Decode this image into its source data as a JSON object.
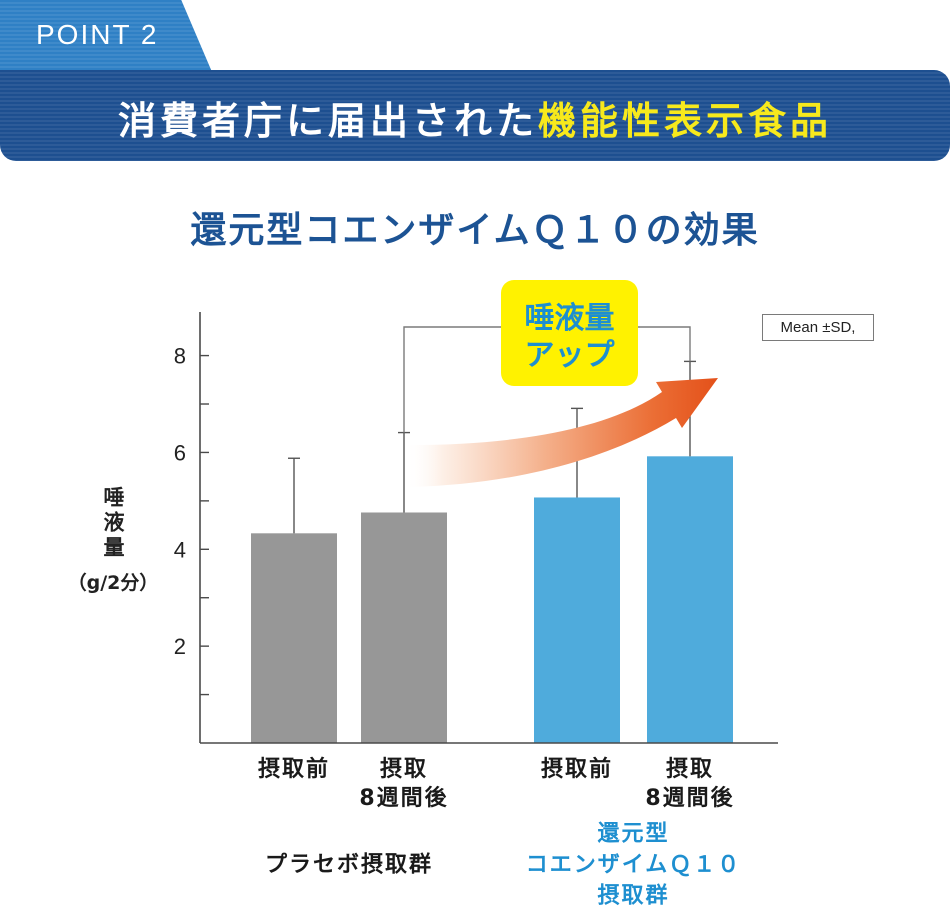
{
  "point_tab": {
    "label": "POINT 2"
  },
  "banner": {
    "text": "消費者庁に届出された",
    "highlight": "機能性表示食品"
  },
  "colors": {
    "tab": "#2f80c5",
    "banner": "#1d4f90",
    "highlight": "#f7e91c",
    "title": "#1c5394",
    "arrow": "#e4521b",
    "callout_bg": "#fff200",
    "callout_text": "#1e8fd0"
  },
  "callout": {
    "line1": "唾液量",
    "line2": "アップ"
  },
  "chart_data": {
    "type": "bar",
    "title": "還元型コエンザイムＱ１０の効果",
    "ylabel": "唾液量",
    "yunit": "（g/2分）",
    "ylim": [
      0,
      8.9
    ],
    "yticks": [
      2,
      4,
      6,
      8
    ],
    "grid": false,
    "note": "Mean ±SD,",
    "groups": [
      {
        "name": "プラセボ摂取群",
        "label_color": "#1a1a1a",
        "bar_color": "#979797",
        "bars": [
          {
            "label": "摂取前",
            "value": 4.33,
            "sd": 1.55
          },
          {
            "label": "摂取\n8週間後",
            "value": 4.76,
            "sd": 1.65
          }
        ]
      },
      {
        "name": "還元型\nコエンザイムＱ１０\n摂取群",
        "label_color": "#1e8fd0",
        "bar_color": "#4fabdc",
        "bars": [
          {
            "label": "摂取前",
            "value": 5.07,
            "sd": 1.84
          },
          {
            "label": "摂取\n8週間後",
            "value": 5.92,
            "sd": 1.96
          }
        ]
      }
    ]
  }
}
